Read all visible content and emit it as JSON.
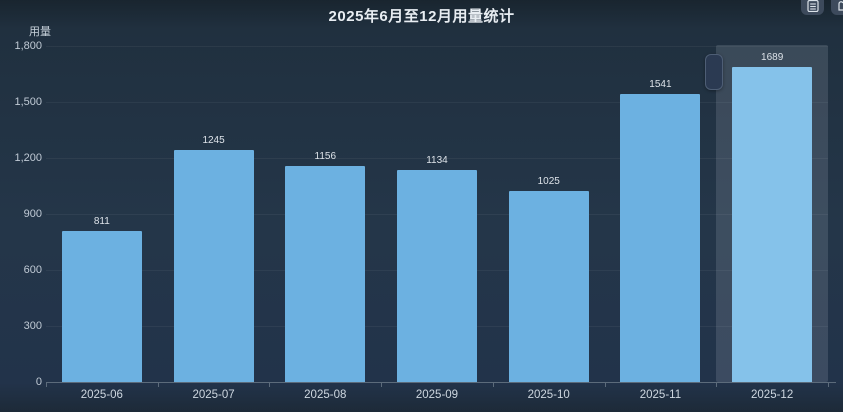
{
  "chart_data": {
    "type": "bar",
    "title": "2025年6月至12月用量统计",
    "ylabel": "用量",
    "xlabel": "",
    "categories": [
      "2025-06",
      "2025-07",
      "2025-08",
      "2025-09",
      "2025-10",
      "2025-11",
      "2025-12"
    ],
    "values": [
      811,
      1245,
      1156,
      1134,
      1025,
      1541,
      1689
    ],
    "ylim": [
      0,
      1800
    ],
    "yticks": [
      0,
      300,
      600,
      900,
      1200,
      1500,
      1800
    ],
    "ytick_labels": [
      "0",
      "300",
      "600",
      "900",
      "1,200",
      "1,500",
      "1,800"
    ],
    "grid": true,
    "legend": "none",
    "value_labels_shown": true,
    "highlighted_category": "2025-12",
    "colors": {
      "bar": "#6cb1e1",
      "highlighted_bar": "#85c2ea",
      "background": "#243649",
      "axis": "#5c6b7b",
      "text": "#ced7e0",
      "title_text": "#e8edf2",
      "highlight_band": "rgba(220,230,240,0.14)"
    }
  },
  "toolbox": {
    "buttons": [
      {
        "label": "data view",
        "icon": "data-view-icon"
      },
      {
        "label": "save as image",
        "icon": "save-image-icon"
      }
    ]
  }
}
